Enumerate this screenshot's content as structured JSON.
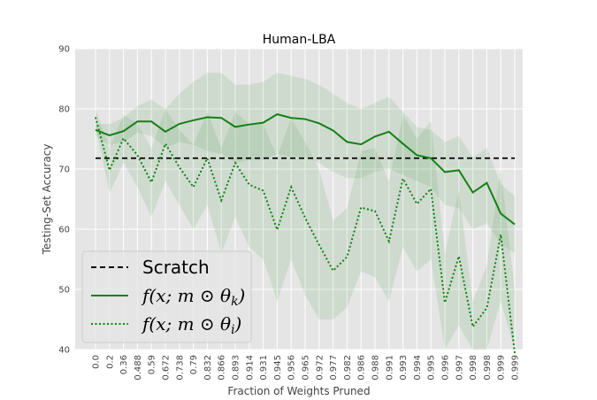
{
  "chart_data": {
    "type": "line",
    "title": "Human-LBA",
    "xlabel": "Fraction of Weights Pruned",
    "ylabel": "Testing-Set Accuracy",
    "ylim": [
      40,
      90
    ],
    "yticks": [
      "40",
      "50",
      "60",
      "70",
      "80",
      "90"
    ],
    "categories": [
      "0.0",
      "0.2",
      "0.36",
      "0.488",
      "0.59",
      "0.672",
      "0.738",
      "0.79",
      "0.832",
      "0.866",
      "0.893",
      "0.914",
      "0.931",
      "0.945",
      "0.956",
      "0.965",
      "0.972",
      "0.977",
      "0.982",
      "0.986",
      "0.988",
      "0.991",
      "0.993",
      "0.994",
      "0.995",
      "0.996",
      "0.997",
      "0.998",
      "0.998",
      "0.999",
      "0.999"
    ],
    "grid": true,
    "legend_position": "lower-left",
    "background_color": "#e5e5e5",
    "series": [
      {
        "name": "Scratch",
        "legend_label": "Scratch",
        "style": "dashed",
        "color": "#000000",
        "values": [
          71.8,
          71.8,
          71.8,
          71.8,
          71.8,
          71.8,
          71.8,
          71.8,
          71.8,
          71.8,
          71.8,
          71.8,
          71.8,
          71.8,
          71.8,
          71.8,
          71.8,
          71.8,
          71.8,
          71.8,
          71.8,
          71.8,
          71.8,
          71.8,
          71.8,
          71.8,
          71.8,
          71.8,
          71.8,
          71.8,
          71.8
        ]
      },
      {
        "name": "theta_k",
        "legend_label": "f(x; m ⊙ θ",
        "legend_sub": "k",
        "style": "solid",
        "color": "#138113",
        "values": [
          76.5,
          75.6,
          76.3,
          77.9,
          77.9,
          76.2,
          77.5,
          78.1,
          78.6,
          78.5,
          77.0,
          77.4,
          77.7,
          79.1,
          78.5,
          78.3,
          77.6,
          76.4,
          74.5,
          74.1,
          75.4,
          76.2,
          74.2,
          72.3,
          71.8,
          69.5,
          69.8,
          66.1,
          67.7,
          62.6,
          60.8
        ],
        "band_lower": [
          75.5,
          74.0,
          74.5,
          76.0,
          75.5,
          73.5,
          74.5,
          74.0,
          73.0,
          72.5,
          71.0,
          71.5,
          71.5,
          72.5,
          72.0,
          72.0,
          71.0,
          69.5,
          68.5,
          68.5,
          69.5,
          70.0,
          69.0,
          68.0,
          67.0,
          64.0,
          63.5,
          60.0,
          61.0,
          57.5,
          56.0
        ],
        "band_upper": [
          77.5,
          77.5,
          78.5,
          80.5,
          81.5,
          80.0,
          82.5,
          84.5,
          86.0,
          86.0,
          84.0,
          84.0,
          84.5,
          86.0,
          85.5,
          85.0,
          84.0,
          82.5,
          81.0,
          80.0,
          81.0,
          82.0,
          79.5,
          77.0,
          76.5,
          74.5,
          75.5,
          72.0,
          73.5,
          67.5,
          65.5
        ]
      },
      {
        "name": "theta_i",
        "legend_label": "f(x; m ⊙ θ",
        "legend_sub": "i",
        "style": "dotted",
        "color": "#138113",
        "values": [
          78.6,
          69.8,
          75.1,
          72.3,
          67.8,
          74.2,
          70.3,
          67.0,
          71.8,
          64.8,
          71.0,
          67.4,
          66.4,
          59.9,
          67.0,
          61.9,
          57.4,
          53.1,
          55.4,
          63.6,
          63.0,
          58.0,
          68.4,
          64.2,
          66.7,
          47.8,
          55.5,
          43.8,
          46.9,
          59.1,
          39.4
        ],
        "band_lower": [
          77.0,
          66.0,
          71.0,
          67.0,
          62.0,
          68.0,
          64.0,
          60.0,
          64.0,
          56.0,
          62.0,
          57.0,
          55.0,
          48.0,
          55.0,
          49.0,
          45.0,
          45.0,
          47.0,
          53.0,
          52.0,
          48.0,
          57.0,
          53.0,
          55.0,
          40.0,
          44.0,
          40.0,
          40.0,
          48.0,
          40.0
        ],
        "band_upper": [
          80.0,
          73.5,
          79.0,
          77.5,
          73.5,
          80.0,
          76.5,
          74.0,
          79.5,
          73.5,
          79.5,
          77.5,
          77.5,
          72.0,
          78.5,
          74.5,
          70.0,
          61.5,
          63.5,
          73.0,
          73.5,
          68.0,
          79.0,
          75.0,
          78.0,
          56.0,
          66.5,
          48.0,
          54.0,
          70.0,
          50.0
        ]
      }
    ]
  }
}
